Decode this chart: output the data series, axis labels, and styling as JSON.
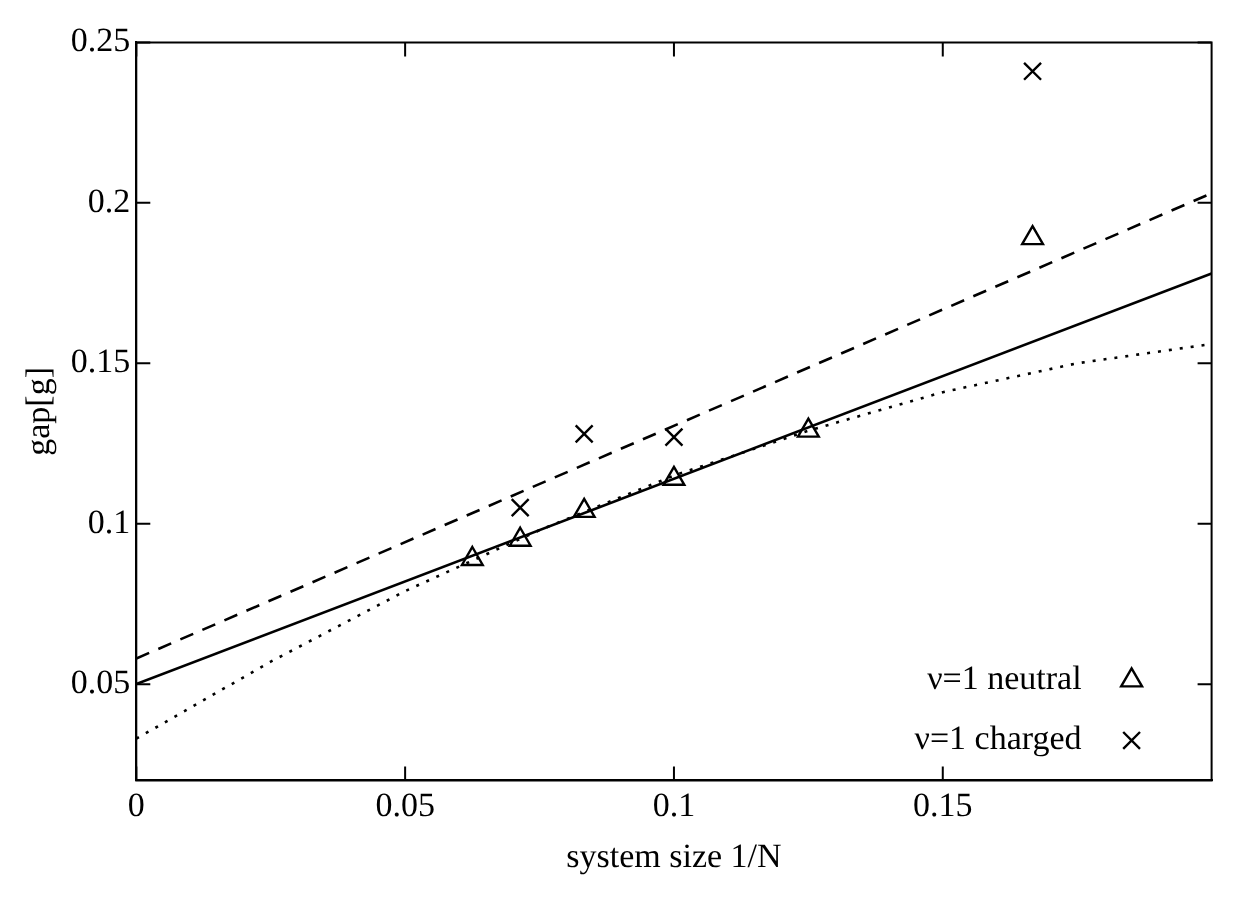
{
  "chart_data": {
    "type": "scatter",
    "xlabel": "system size 1/N",
    "ylabel": "gap[g]",
    "xlim": [
      0,
      0.2
    ],
    "xticks": [
      0,
      0.05,
      0.1,
      0.15
    ],
    "ylim": [
      0.02,
      0.25
    ],
    "yticks": [
      0.05,
      0.1,
      0.15,
      0.2,
      0.25
    ],
    "grid": false,
    "legend": "bottom right",
    "series": [
      {
        "name": "ν=1 neutral",
        "marker": "triangle",
        "color": "#000000",
        "x": [
          0.0625,
          0.0714,
          0.0833,
          0.1,
          0.125,
          0.1667
        ],
        "values": [
          0.089,
          0.095,
          0.104,
          0.114,
          0.129,
          0.189
        ]
      },
      {
        "name": "ν=1 charged",
        "marker": "cross",
        "color": "#000000",
        "x": [
          0.0714,
          0.0833,
          0.1,
          0.1667
        ],
        "values": [
          0.105,
          0.128,
          0.127,
          0.241
        ]
      },
      {
        "type": "line",
        "line_style": "solid",
        "marker": "none",
        "color": "#000000",
        "x": [
          0,
          0.2
        ],
        "values": [
          0.05,
          0.178
        ]
      },
      {
        "type": "line",
        "line_style": "dashed",
        "marker": "none",
        "color": "#000000",
        "x": [
          0,
          0.2
        ],
        "values": [
          0.058,
          0.203
        ]
      },
      {
        "type": "line",
        "line_style": "dotted",
        "marker": "none",
        "color": "#000000",
        "x": [
          0,
          0.025,
          0.05,
          0.075,
          0.1,
          0.125,
          0.15,
          0.175,
          0.2
        ],
        "values": [
          0.033,
          0.057,
          0.079,
          0.098,
          0.115,
          0.129,
          0.141,
          0.15,
          0.156
        ]
      }
    ]
  }
}
